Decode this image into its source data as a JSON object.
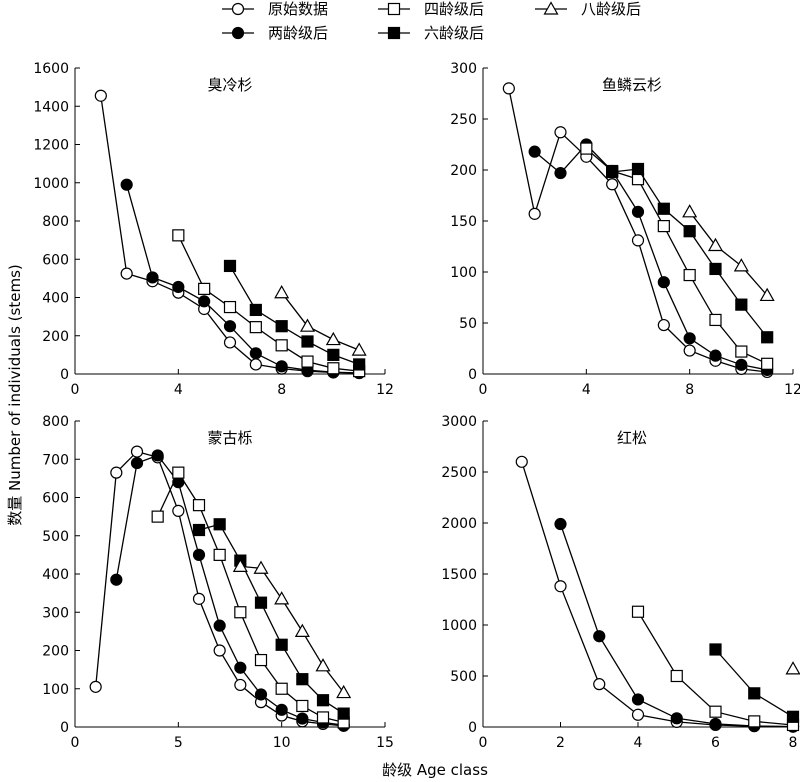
{
  "legend": [
    {
      "label": "原始数据",
      "marker": "circle-open"
    },
    {
      "label": "四龄级后",
      "marker": "square-open"
    },
    {
      "label": "八龄级后",
      "marker": "triangle-open"
    },
    {
      "label": "两龄级后",
      "marker": "circle-filled"
    },
    {
      "label": "六龄级后",
      "marker": "square-filled"
    }
  ],
  "xlabel": "龄级 Age class",
  "ylabel": "数量 Number of individuals (stems)",
  "chart_data": [
    {
      "type": "line",
      "title": "臭冷杉",
      "xlim": [
        0,
        12
      ],
      "xticks": [
        0,
        4,
        8,
        12
      ],
      "ylim": [
        0,
        1600
      ],
      "yticks": [
        0,
        200,
        400,
        600,
        800,
        1000,
        1200,
        1400,
        1600
      ],
      "series": [
        {
          "name": "原始数据",
          "marker": "circle-open",
          "x": [
            1,
            2,
            3,
            4,
            5,
            6,
            7,
            8,
            9,
            10,
            11
          ],
          "y": [
            1455,
            525,
            485,
            425,
            340,
            165,
            50,
            28,
            15,
            8,
            5
          ]
        },
        {
          "name": "两龄级后",
          "marker": "circle-filled",
          "x": [
            2,
            3,
            4,
            5,
            6,
            7,
            8,
            9,
            10,
            11
          ],
          "y": [
            990,
            505,
            455,
            380,
            250,
            108,
            40,
            20,
            10,
            5
          ]
        },
        {
          "name": "四龄级后",
          "marker": "square-open",
          "x": [
            4,
            5,
            6,
            7,
            8,
            9,
            10,
            11
          ],
          "y": [
            725,
            445,
            350,
            245,
            150,
            65,
            30,
            15
          ]
        },
        {
          "name": "六龄级后",
          "marker": "square-filled",
          "x": [
            6,
            7,
            8,
            9,
            10,
            11
          ],
          "y": [
            565,
            335,
            250,
            170,
            100,
            50
          ]
        },
        {
          "name": "八龄级后",
          "marker": "triangle-open",
          "x": [
            8,
            9,
            10,
            11
          ],
          "y": [
            425,
            250,
            180,
            125
          ]
        }
      ]
    },
    {
      "type": "line",
      "title": "鱼鳞云杉",
      "xlim": [
        0,
        12
      ],
      "xticks": [
        0,
        4,
        8,
        12
      ],
      "ylim": [
        0,
        300
      ],
      "yticks": [
        0,
        50,
        100,
        150,
        200,
        250,
        300
      ],
      "series": [
        {
          "name": "原始数据",
          "marker": "circle-open",
          "x": [
            1,
            2,
            3,
            4,
            5,
            6,
            7,
            8,
            9,
            10,
            11
          ],
          "y": [
            280,
            157,
            237,
            213,
            186,
            131,
            48,
            23,
            13,
            5,
            2
          ]
        },
        {
          "name": "两龄级后",
          "marker": "circle-filled",
          "x": [
            2,
            3,
            4,
            5,
            6,
            7,
            8,
            9,
            10,
            11
          ],
          "y": [
            218,
            197,
            225,
            199,
            159,
            90,
            35,
            18,
            9,
            4
          ]
        },
        {
          "name": "四龄级后",
          "marker": "square-open",
          "x": [
            4,
            5,
            6,
            7,
            8,
            9,
            10,
            11
          ],
          "y": [
            221,
            199,
            191,
            145,
            97,
            53,
            22,
            10
          ]
        },
        {
          "name": "六龄级后",
          "marker": "square-filled",
          "x": [
            5,
            6,
            7,
            8,
            9,
            10,
            11
          ],
          "y": [
            198,
            201,
            162,
            140,
            103,
            68,
            36
          ]
        },
        {
          "name": "八龄级后",
          "marker": "triangle-open",
          "x": [
            8,
            9,
            10,
            11
          ],
          "y": [
            159,
            126,
            106,
            77
          ]
        }
      ]
    },
    {
      "type": "line",
      "title": "蒙古栎",
      "xlim": [
        0,
        15
      ],
      "xticks": [
        0,
        5,
        10,
        15
      ],
      "ylim": [
        0,
        800
      ],
      "yticks": [
        0,
        100,
        200,
        300,
        400,
        500,
        600,
        700,
        800
      ],
      "series": [
        {
          "name": "原始数据",
          "marker": "circle-open",
          "x": [
            1,
            2,
            3,
            4,
            5,
            6,
            7,
            8,
            9,
            10,
            11,
            12,
            13
          ],
          "y": [
            105,
            665,
            720,
            705,
            565,
            335,
            200,
            110,
            65,
            30,
            15,
            8,
            3
          ]
        },
        {
          "name": "两龄级后",
          "marker": "circle-filled",
          "x": [
            2,
            3,
            4,
            5,
            6,
            7,
            8,
            9,
            10,
            11,
            12,
            13
          ],
          "y": [
            385,
            690,
            710,
            640,
            450,
            265,
            155,
            85,
            45,
            22,
            12,
            5
          ]
        },
        {
          "name": "四龄级后",
          "marker": "square-open",
          "x": [
            4,
            5,
            6,
            7,
            8,
            9,
            10,
            11,
            12,
            13
          ],
          "y": [
            550,
            665,
            580,
            450,
            300,
            175,
            100,
            55,
            25,
            12
          ]
        },
        {
          "name": "六龄级后",
          "marker": "square-filled",
          "x": [
            6,
            7,
            8,
            9,
            10,
            11,
            12,
            13
          ],
          "y": [
            515,
            530,
            435,
            325,
            215,
            125,
            70,
            35
          ]
        },
        {
          "name": "八龄级后",
          "marker": "triangle-open",
          "x": [
            8,
            9,
            10,
            11,
            12,
            13
          ],
          "y": [
            420,
            415,
            335,
            250,
            160,
            90
          ]
        }
      ]
    },
    {
      "type": "line",
      "title": "红松",
      "xlim": [
        0,
        8
      ],
      "xticks": [
        0,
        2,
        4,
        6,
        8
      ],
      "ylim": [
        0,
        3000
      ],
      "yticks": [
        0,
        500,
        1000,
        1500,
        2000,
        2500,
        3000
      ],
      "series": [
        {
          "name": "原始数据",
          "marker": "circle-open",
          "x": [
            1,
            2,
            3,
            4,
            5,
            6,
            7,
            8
          ],
          "y": [
            2600,
            1380,
            420,
            120,
            50,
            20,
            8,
            3
          ]
        },
        {
          "name": "两龄级后",
          "marker": "circle-filled",
          "x": [
            2,
            3,
            4,
            5,
            6,
            7,
            8
          ],
          "y": [
            1990,
            890,
            270,
            85,
            30,
            10,
            4
          ]
        },
        {
          "name": "四龄级后",
          "marker": "square-open",
          "x": [
            4,
            5,
            6,
            7,
            8
          ],
          "y": [
            1130,
            500,
            150,
            55,
            20
          ]
        },
        {
          "name": "六龄级后",
          "marker": "square-filled",
          "x": [
            6,
            7,
            8
          ],
          "y": [
            760,
            330,
            100
          ]
        },
        {
          "name": "八龄级后",
          "marker": "triangle-open",
          "x": [
            8
          ],
          "y": [
            570
          ]
        }
      ]
    }
  ]
}
